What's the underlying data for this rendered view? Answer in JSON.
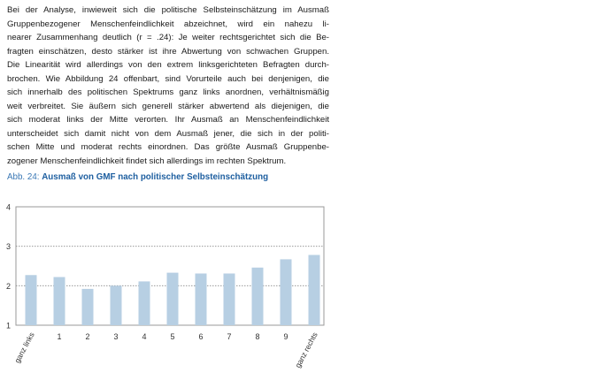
{
  "paragraph": {
    "lines": [
      "Bei der Analyse, inwieweit sich die politische Selbsteinschätzung im Ausmaß",
      "Gruppenbezogener Menschenfeindlichkeit abzeichnet, wird ein nahezu li-",
      "nearer Zusammenhang deutlich (r = .24): Je weiter rechtsgerichtet sich die Be-",
      "fragten einschätzen, desto stärker ist ihre Abwertung von schwachen Gruppen.",
      "Die Linearität wird allerdings von den extrem linksgerichteten Befragten durch-",
      "brochen. Wie Abbildung 24 offenbart, sind Vorurteile auch bei denjenigen, die",
      "sich innerhalb des politischen Spektrums ganz links anordnen, verhältnismäßig",
      "weit verbreitet. Sie äußern sich generell stärker abwertend als diejenigen, die",
      "sich moderat links der Mitte verorten. Ihr Ausmaß an Menschenfeindlichkeit",
      "unterscheidet sich damit nicht von dem Ausmaß jener, die sich in der politi-",
      "schen Mitte und moderat rechts einordnen. Das größte Ausmaß Gruppenbe-",
      "zogener Menschenfeindlichkeit findet sich allerdings im rechten Spektrum."
    ]
  },
  "caption": {
    "number": "Abb. 24:",
    "title": "Ausmaß von GMF nach politischer Selbsteinschätzung"
  },
  "chart_data": {
    "type": "bar",
    "categories": [
      "ganz links",
      "1",
      "2",
      "3",
      "4",
      "5",
      "6",
      "7",
      "8",
      "9",
      "ganz rechts"
    ],
    "values": [
      2.27,
      2.22,
      1.92,
      2.0,
      2.11,
      2.33,
      2.31,
      2.31,
      2.46,
      2.67,
      2.78
    ],
    "ylim": [
      1,
      4
    ],
    "yticks": [
      1,
      2,
      3,
      4
    ],
    "rotated_category_labels": [
      "ganz links",
      "ganz rechts"
    ],
    "grid": "dotted horizontal",
    "bar_color": "#b7cfe3",
    "grid_color": "#8a8a8a",
    "frame_color": "#9a9a9a"
  },
  "colors": {
    "caption_number": "#3a78b5",
    "caption_title": "#1e5fa0",
    "text": "#1a1a1a"
  }
}
